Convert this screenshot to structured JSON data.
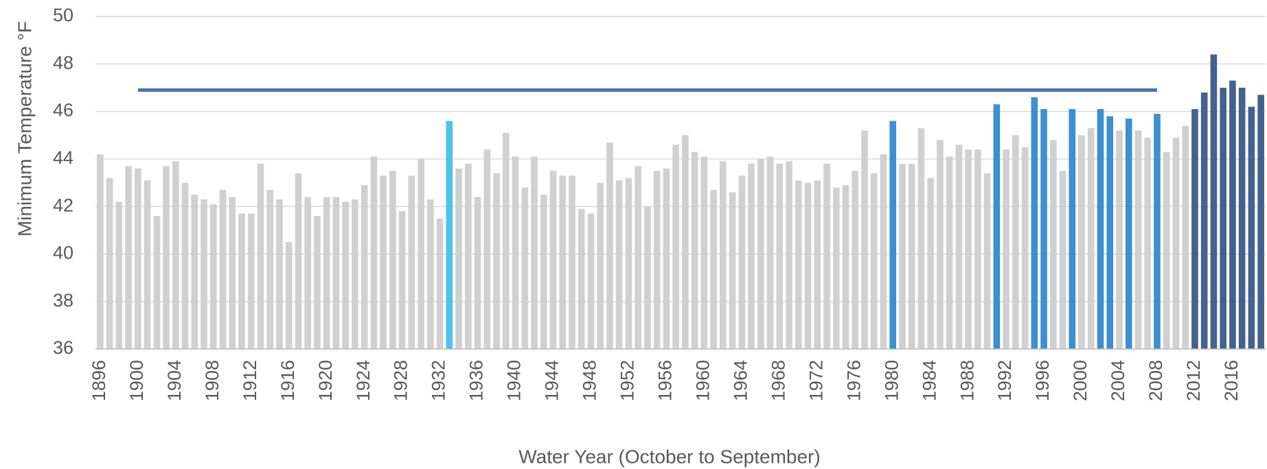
{
  "chart_data": {
    "type": "bar",
    "y_axis_label": "Minimum Temperature °F",
    "x_axis_label": "Water Year (October to September)",
    "categories": [
      "1896",
      null,
      null,
      null,
      "1900",
      null,
      null,
      null,
      "1904",
      null,
      null,
      null,
      "1908",
      null,
      null,
      null,
      "1912",
      null,
      null,
      null,
      "1916",
      null,
      null,
      null,
      "1920",
      null,
      null,
      null,
      "1924",
      null,
      null,
      null,
      "1928",
      null,
      null,
      null,
      "1932",
      null,
      null,
      null,
      "1936",
      null,
      null,
      null,
      "1940",
      null,
      null,
      null,
      "1944",
      null,
      null,
      null,
      "1948",
      null,
      null,
      null,
      "1952",
      null,
      null,
      null,
      "1956",
      null,
      null,
      null,
      "1960",
      null,
      null,
      null,
      "1964",
      null,
      null,
      null,
      "1968",
      null,
      null,
      null,
      "1972",
      null,
      null,
      null,
      "1976",
      null,
      null,
      null,
      "1980",
      null,
      null,
      null,
      "1984",
      null,
      null,
      null,
      "1988",
      null,
      null,
      null,
      "1992",
      null,
      null,
      null,
      "1996",
      null,
      null,
      null,
      "2000",
      null,
      null,
      null,
      "2004",
      null,
      null,
      null,
      "2008",
      null,
      null,
      null,
      "2012",
      null,
      null,
      null,
      "2016",
      null,
      null,
      null
    ],
    "values": [
      44.2,
      43.2,
      42.2,
      43.7,
      43.6,
      43.1,
      41.6,
      43.7,
      43.9,
      43.0,
      42.5,
      42.3,
      42.1,
      42.7,
      42.4,
      41.7,
      41.7,
      43.8,
      42.7,
      42.3,
      40.5,
      43.4,
      42.4,
      41.6,
      42.4,
      42.4,
      42.2,
      42.3,
      42.9,
      44.1,
      43.3,
      43.5,
      41.8,
      43.3,
      44.0,
      42.3,
      41.5,
      45.6,
      43.6,
      43.8,
      42.4,
      44.4,
      43.4,
      45.1,
      44.1,
      42.8,
      44.1,
      42.5,
      43.5,
      43.3,
      43.3,
      41.9,
      41.7,
      43.0,
      44.7,
      43.1,
      43.2,
      43.7,
      42.0,
      43.5,
      43.6,
      44.6,
      45.0,
      44.3,
      44.1,
      42.7,
      43.9,
      42.6,
      43.3,
      43.8,
      44.0,
      44.1,
      43.8,
      43.9,
      43.1,
      43.0,
      43.1,
      43.8,
      42.8,
      42.9,
      43.5,
      45.2,
      43.4,
      44.2,
      45.6,
      43.8,
      43.8,
      45.3,
      43.2,
      44.8,
      44.1,
      44.6,
      44.4,
      44.4,
      43.4,
      46.3,
      44.4,
      45.0,
      44.5,
      46.6,
      46.1,
      44.8,
      43.5,
      46.1,
      45.0,
      45.3,
      46.1,
      45.8,
      45.2,
      45.7,
      45.2,
      44.9,
      45.9,
      44.3,
      44.9,
      45.4,
      46.1,
      46.8,
      48.4,
      47.0,
      47.3,
      47.0,
      46.2,
      46.7
    ],
    "colors": [
      "#d0d0d0",
      "#d0d0d0",
      "#d0d0d0",
      "#d0d0d0",
      "#d0d0d0",
      "#d0d0d0",
      "#d0d0d0",
      "#d0d0d0",
      "#d0d0d0",
      "#d0d0d0",
      "#d0d0d0",
      "#d0d0d0",
      "#d0d0d0",
      "#d0d0d0",
      "#d0d0d0",
      "#d0d0d0",
      "#d0d0d0",
      "#d0d0d0",
      "#d0d0d0",
      "#d0d0d0",
      "#d0d0d0",
      "#d0d0d0",
      "#d0d0d0",
      "#d0d0d0",
      "#d0d0d0",
      "#d0d0d0",
      "#d0d0d0",
      "#d0d0d0",
      "#d0d0d0",
      "#d0d0d0",
      "#d0d0d0",
      "#d0d0d0",
      "#d0d0d0",
      "#d0d0d0",
      "#d0d0d0",
      "#d0d0d0",
      "#d0d0d0",
      "#4dc3ea",
      "#d0d0d0",
      "#d0d0d0",
      "#d0d0d0",
      "#d0d0d0",
      "#d0d0d0",
      "#d0d0d0",
      "#d0d0d0",
      "#d0d0d0",
      "#d0d0d0",
      "#d0d0d0",
      "#d0d0d0",
      "#d0d0d0",
      "#d0d0d0",
      "#d0d0d0",
      "#d0d0d0",
      "#d0d0d0",
      "#d0d0d0",
      "#d0d0d0",
      "#d0d0d0",
      "#d0d0d0",
      "#d0d0d0",
      "#d0d0d0",
      "#d0d0d0",
      "#d0d0d0",
      "#d0d0d0",
      "#d0d0d0",
      "#d0d0d0",
      "#d0d0d0",
      "#d0d0d0",
      "#d0d0d0",
      "#d0d0d0",
      "#d0d0d0",
      "#d0d0d0",
      "#d0d0d0",
      "#d0d0d0",
      "#d0d0d0",
      "#d0d0d0",
      "#d0d0d0",
      "#d0d0d0",
      "#d0d0d0",
      "#d0d0d0",
      "#d0d0d0",
      "#d0d0d0",
      "#d0d0d0",
      "#d0d0d0",
      "#d0d0d0",
      "#3d8fd1",
      "#d0d0d0",
      "#d0d0d0",
      "#d0d0d0",
      "#d0d0d0",
      "#d0d0d0",
      "#d0d0d0",
      "#d0d0d0",
      "#d0d0d0",
      "#d0d0d0",
      "#d0d0d0",
      "#3d8fd1",
      "#d0d0d0",
      "#d0d0d0",
      "#d0d0d0",
      "#3d8fd1",
      "#3d8fd1",
      "#d0d0d0",
      "#d0d0d0",
      "#3d8fd1",
      "#d0d0d0",
      "#d0d0d0",
      "#3d8fd1",
      "#3d8fd1",
      "#d0d0d0",
      "#3d8fd1",
      "#d0d0d0",
      "#d0d0d0",
      "#3d8fd1",
      "#d0d0d0",
      "#d0d0d0",
      "#d0d0d0",
      "#44618f",
      "#44618f",
      "#44618f",
      "#44618f",
      "#44618f",
      "#44618f",
      "#44618f",
      "#44618f"
    ],
    "reference_line": {
      "value": 46.9,
      "color": "#4a72b0"
    },
    "ylim": [
      36,
      50
    ],
    "yticks": [
      36,
      38,
      40,
      42,
      44,
      46,
      48,
      50
    ],
    "grid": true
  }
}
